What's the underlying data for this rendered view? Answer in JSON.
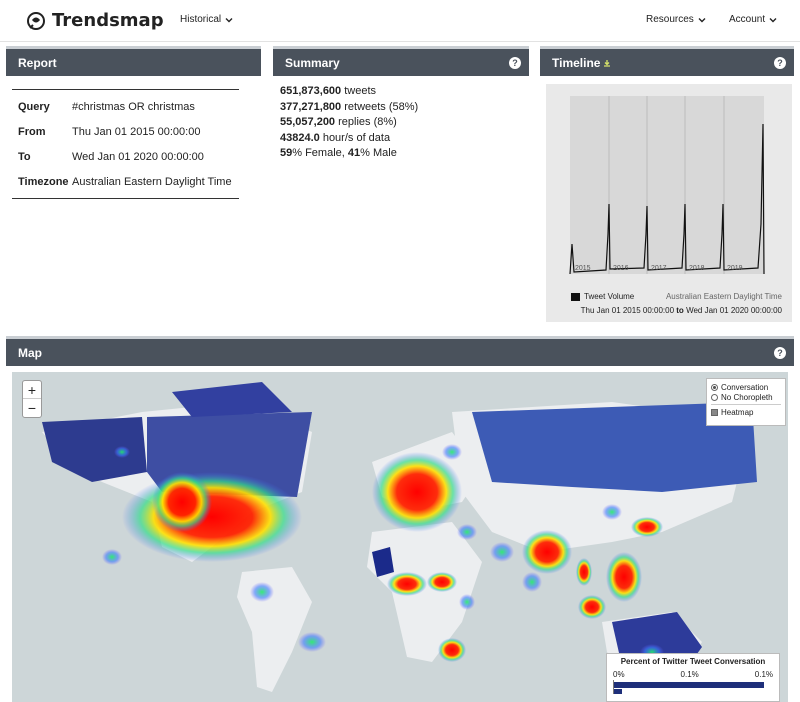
{
  "app": {
    "name": "Trendsmap"
  },
  "nav": {
    "historical": "Historical",
    "resources": "Resources",
    "account": "Account"
  },
  "report": {
    "title": "Report",
    "rows": [
      {
        "label": "Query",
        "value": "#christmas OR christmas"
      },
      {
        "label": "From",
        "value": "Thu Jan 01 2015 00:00:00"
      },
      {
        "label": "To",
        "value": "Wed Jan 01 2020 00:00:00"
      },
      {
        "label": "Timezone",
        "value": "Australian Eastern Daylight Time"
      }
    ]
  },
  "summary": {
    "title": "Summary",
    "tweets": {
      "num": "651,873,600",
      "text": " tweets"
    },
    "retweets": {
      "num": "377,271,800",
      "text": " retweets (58%)"
    },
    "replies": {
      "num": "55,057,200",
      "text": " replies (8%)"
    },
    "hours": {
      "num": "43824.0",
      "text": " hour/s of data"
    },
    "gender": {
      "female_pct": "59",
      "female_text": "% Female, ",
      "male_pct": "41",
      "male_text": "% Male"
    }
  },
  "timeline": {
    "title": "Timeline",
    "years": [
      "2015",
      "2016",
      "2017",
      "2018",
      "2019"
    ],
    "legend": "Tweet Volume",
    "timezone": "Australian Eastern Daylight Time",
    "range_from": "Thu Jan 01 2015 00:00:00",
    "range_to_word": "to",
    "range_to": "Wed Jan 01 2020 00:00:00"
  },
  "map": {
    "title": "Map",
    "zoom_in": "+",
    "zoom_out": "−",
    "layers": {
      "conversation": "Conversation",
      "no_choropleth": "No Choropleth",
      "heatmap": "Heatmap"
    },
    "legend": {
      "title": "Percent of Twitter Tweet Conversation",
      "t0": "0%",
      "t1": "0.1%",
      "t2": "0.1%"
    }
  },
  "colors": {
    "header": "#4a525c",
    "accent": "#1e2f7a",
    "ocean": "#cdd6d8"
  }
}
